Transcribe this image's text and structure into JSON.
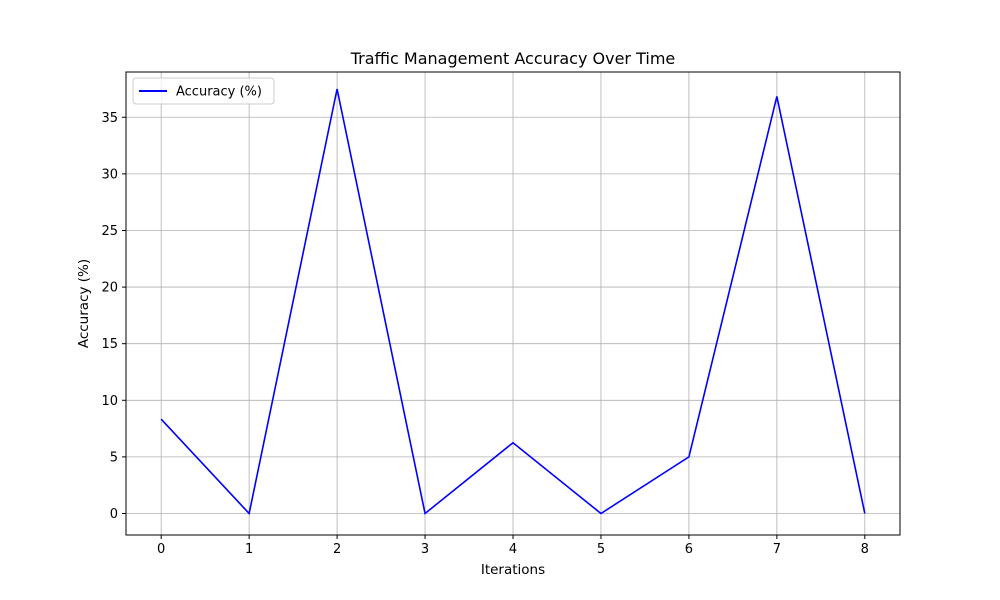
{
  "chart_data": {
    "type": "line",
    "title": "Traffic Management Accuracy Over Time",
    "xlabel": "Iterations",
    "ylabel": "Accuracy (%)",
    "x": [
      0,
      1,
      2,
      3,
      4,
      5,
      6,
      7,
      8
    ],
    "series": [
      {
        "name": "Accuracy (%)",
        "color": "#0000ff",
        "values": [
          8.33,
          0,
          37.5,
          0,
          6.25,
          0,
          5.0,
          36.84,
          0
        ]
      }
    ],
    "xlim": [
      -0.4,
      8.4
    ],
    "ylim": [
      -1.9,
      39.0
    ],
    "xticks": [
      0,
      1,
      2,
      3,
      4,
      5,
      6,
      7,
      8
    ],
    "yticks": [
      0,
      5,
      10,
      15,
      20,
      25,
      30,
      35
    ],
    "grid": true,
    "legend_position": "top-left"
  }
}
